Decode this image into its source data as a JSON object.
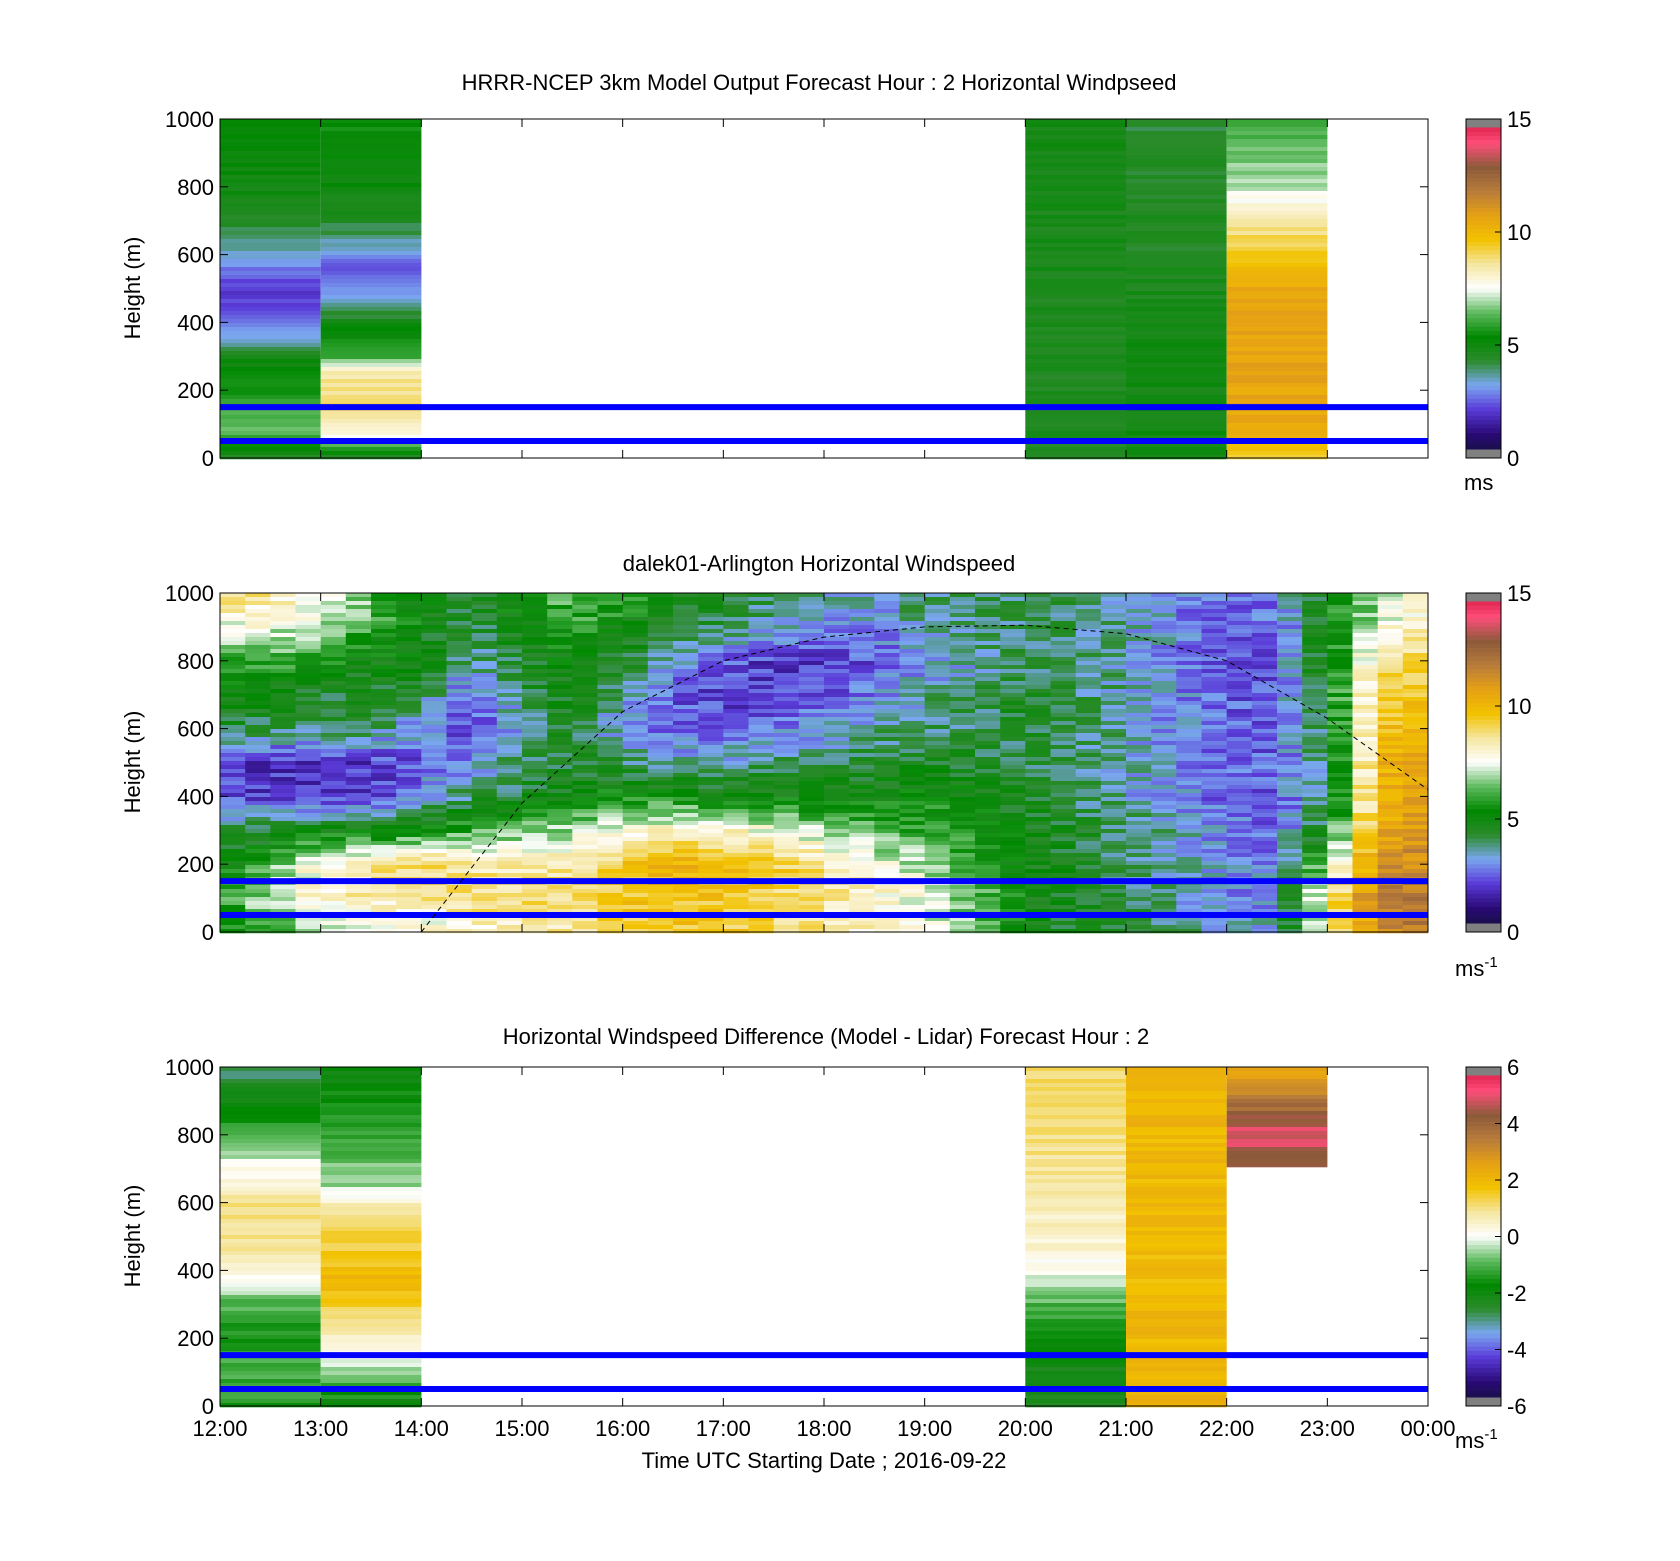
{
  "figure": {
    "x_tick_labels": [
      "12:00",
      "13:00",
      "14:00",
      "15:00",
      "16:00",
      "17:00",
      "18:00",
      "19:00",
      "20:00",
      "21:00",
      "22:00",
      "23:00",
      "00:00"
    ],
    "x_label": "Time UTC  Starting Date ; 2016-09-22",
    "marker_lines_height_m": [
      150,
      50
    ],
    "marker_line_color": "#0000ff"
  },
  "colormap_stops": [
    "#111133",
    "#2a0a78",
    "#5a3bd8",
    "#7aa7f0",
    "#2b8b2b",
    "#008800",
    "#5fba5f",
    "#ffffff",
    "#f5e6a0",
    "#f2c200",
    "#e6a114",
    "#b87c3a",
    "#8c5a3a",
    "#ff4d7a",
    "#d0103a"
  ],
  "chart_data": [
    {
      "type": "heatmap",
      "title": "HRRR-NCEP 3km Model Output   Forecast Hour : 2 Horizontal Windpseed",
      "ylabel": "Height (m)",
      "xlim": [
        "12:00",
        "00:00"
      ],
      "ylim": [
        0,
        1000
      ],
      "y_ticks": [
        0,
        200,
        400,
        600,
        800,
        1000
      ],
      "colorbar": {
        "ticks": [
          0,
          5,
          10,
          15
        ],
        "range": [
          0,
          15
        ],
        "unit": "ms",
        "unit_sup": ""
      },
      "columns": [
        {
          "start": "12:00",
          "end": "13:00",
          "profile": [
            [
              0,
              4.5
            ],
            [
              50,
              6
            ],
            [
              100,
              6.5
            ],
            [
              200,
              5.5
            ],
            [
              300,
              4.8
            ],
            [
              350,
              3.5
            ],
            [
              400,
              2.5
            ],
            [
              500,
              2
            ],
            [
              600,
              3.5
            ],
            [
              700,
              4.5
            ],
            [
              800,
              5
            ],
            [
              1000,
              5.5
            ]
          ]
        },
        {
          "start": "13:00",
          "end": "14:00",
          "profile": [
            [
              0,
              4.5
            ],
            [
              80,
              8
            ],
            [
              150,
              9
            ],
            [
              250,
              8.5
            ],
            [
              300,
              6
            ],
            [
              400,
              4.8
            ],
            [
              450,
              3.5
            ],
            [
              550,
              2.5
            ],
            [
              600,
              3
            ],
            [
              700,
              4.5
            ],
            [
              800,
              5
            ],
            [
              1000,
              5.5
            ]
          ]
        },
        {
          "start": "20:00",
          "end": "21:00",
          "profile": [
            [
              0,
              4.5
            ],
            [
              1000,
              4.8
            ]
          ]
        },
        {
          "start": "21:00",
          "end": "22:00",
          "profile": [
            [
              0,
              5
            ],
            [
              400,
              4.8
            ],
            [
              600,
              4.5
            ],
            [
              900,
              4.4
            ],
            [
              1000,
              4.3
            ]
          ]
        },
        {
          "start": "22:00",
          "end": "23:00",
          "profile": [
            [
              0,
              9.5
            ],
            [
              100,
              10.5
            ],
            [
              300,
              10.6
            ],
            [
              500,
              10.5
            ],
            [
              600,
              9.5
            ],
            [
              700,
              8.5
            ],
            [
              800,
              7
            ],
            [
              1000,
              6
            ]
          ]
        }
      ]
    },
    {
      "type": "heatmap",
      "title": "dalek01-Arlington  Horizontal Windspeed",
      "ylabel": "Height (m)",
      "xlim": [
        "12:00",
        "00:00"
      ],
      "ylim": [
        0,
        1000
      ],
      "y_ticks": [
        0,
        200,
        400,
        600,
        800,
        1000
      ],
      "colorbar": {
        "ticks": [
          0,
          5,
          10,
          15
        ],
        "range": [
          0,
          15
        ],
        "unit": "ms",
        "unit_sup": "-1"
      },
      "time_hours": [
        12,
        12.5,
        13,
        13.5,
        14,
        14.5,
        15,
        15.5,
        16,
        16.5,
        17,
        17.5,
        18,
        18.5,
        19,
        19.5,
        20,
        20.5,
        21,
        21.5,
        22,
        22.5,
        23,
        23.5,
        24
      ],
      "height_m": [
        0,
        100,
        200,
        300,
        400,
        500,
        600,
        700,
        800,
        900,
        1000
      ],
      "windspeed_ms": [
        [
          5,
          6,
          7,
          7,
          7.5,
          8,
          8,
          8.5,
          9,
          9.5,
          9.5,
          9,
          8.5,
          8,
          7.5,
          6.5,
          5,
          4.5,
          4,
          4,
          3.5,
          3.5,
          8,
          11,
          12
        ],
        [
          6,
          7,
          8,
          8.5,
          8.5,
          9,
          9,
          9,
          9.5,
          9.5,
          9.5,
          9,
          8.5,
          8,
          7.5,
          6.5,
          5,
          4.5,
          4,
          3.5,
          3,
          3,
          8.5,
          11.5,
          12
        ],
        [
          5,
          6,
          8,
          8.5,
          9,
          8.5,
          8,
          8.5,
          9.5,
          10,
          10,
          9.5,
          8.5,
          7.5,
          7,
          6,
          5,
          4.5,
          4,
          3.5,
          3,
          3,
          7,
          11,
          11.5
        ],
        [
          4,
          4.5,
          5,
          5,
          5.5,
          6,
          6.5,
          7,
          7.5,
          8,
          8,
          7.5,
          7,
          6.5,
          6,
          5.5,
          5,
          4.5,
          4,
          3.5,
          3,
          2.5,
          5,
          10.5,
          11
        ],
        [
          2.5,
          2,
          2,
          2,
          3,
          4,
          4.5,
          5,
          5.5,
          5.5,
          5,
          5,
          5,
          5,
          5.5,
          5,
          4.5,
          4,
          3.5,
          3,
          2.5,
          2.5,
          4,
          10,
          11
        ],
        [
          2,
          2,
          2,
          2,
          2.5,
          3,
          4,
          4.5,
          4,
          3.5,
          3.5,
          4,
          4,
          4.5,
          4.5,
          4.5,
          4,
          4,
          3.5,
          3,
          2.5,
          2.5,
          4,
          10,
          10.5
        ],
        [
          4.5,
          4,
          4,
          4,
          3,
          2,
          3.5,
          4.5,
          3,
          2.5,
          2.5,
          3,
          3,
          3.5,
          4,
          4,
          4.5,
          4,
          3.5,
          3,
          2.5,
          2.5,
          4.5,
          9.5,
          10
        ],
        [
          5,
          5,
          4.5,
          4.5,
          4,
          2.5,
          4,
          5,
          3.5,
          2.5,
          2,
          2,
          2.5,
          3,
          3.5,
          4,
          4.5,
          4,
          3.5,
          3,
          2.5,
          2.5,
          5,
          9,
          9.5
        ],
        [
          6,
          6,
          5.5,
          5,
          5,
          3.5,
          4.5,
          5,
          4.5,
          3.5,
          2.5,
          2,
          2,
          2.5,
          3,
          3.5,
          4,
          4,
          3.5,
          3,
          2.5,
          2.5,
          5,
          8.5,
          9
        ],
        [
          7.5,
          7.5,
          7,
          6,
          5,
          4,
          5,
          6,
          5,
          4.5,
          4,
          3.5,
          3,
          3,
          3.5,
          4,
          4,
          4,
          3.5,
          3,
          2.5,
          2.5,
          5,
          7.5,
          8.5
        ],
        [
          9,
          8.5,
          7.5,
          6.5,
          5,
          4.5,
          5.5,
          6.5,
          6,
          5,
          4.5,
          4,
          3.5,
          3.5,
          4,
          4,
          4,
          4,
          3.5,
          3,
          2.5,
          3,
          5,
          7,
          8
        ]
      ],
      "solar_curve_m": [
        [
          14,
          0
        ],
        [
          15,
          380
        ],
        [
          16,
          650
        ],
        [
          17,
          800
        ],
        [
          18,
          870
        ],
        [
          19,
          900
        ],
        [
          20,
          905
        ],
        [
          21,
          880
        ],
        [
          22,
          800
        ],
        [
          23,
          630
        ],
        [
          24,
          420
        ]
      ]
    },
    {
      "type": "heatmap",
      "title": "Horizontal Windspeed Difference (Model - Lidar) Forecast Hour : 2",
      "ylabel": "Height (m)",
      "xlim": [
        "12:00",
        "00:00"
      ],
      "ylim": [
        0,
        1000
      ],
      "y_ticks": [
        0,
        200,
        400,
        600,
        800,
        1000
      ],
      "colorbar": {
        "ticks": [
          -6,
          -4,
          -2,
          0,
          2,
          4,
          6
        ],
        "range": [
          -6,
          6
        ],
        "unit": "ms",
        "unit_sup": "-1"
      },
      "columns": [
        {
          "start": "12:00",
          "end": "13:00",
          "profile": [
            [
              0,
              -1.5
            ],
            [
              100,
              -1
            ],
            [
              200,
              -1.5
            ],
            [
              300,
              -1
            ],
            [
              400,
              0.5
            ],
            [
              500,
              1
            ],
            [
              600,
              1
            ],
            [
              700,
              0
            ],
            [
              800,
              -1
            ],
            [
              900,
              -2
            ],
            [
              1000,
              -3
            ]
          ]
        },
        {
          "start": "13:00",
          "end": "14:00",
          "profile": [
            [
              0,
              -2
            ],
            [
              100,
              -0.5
            ],
            [
              200,
              0.5
            ],
            [
              250,
              1
            ],
            [
              350,
              2
            ],
            [
              450,
              1.5
            ],
            [
              550,
              1.2
            ],
            [
              650,
              -0.5
            ],
            [
              750,
              -1
            ],
            [
              850,
              -1.5
            ],
            [
              1000,
              -2
            ]
          ]
        },
        {
          "start": "20:00",
          "end": "21:00",
          "profile": [
            [
              0,
              -2.5
            ],
            [
              150,
              -2
            ],
            [
              300,
              -1
            ],
            [
              400,
              0
            ],
            [
              500,
              0.5
            ],
            [
              600,
              0.7
            ],
            [
              800,
              1
            ],
            [
              1000,
              1.2
            ]
          ]
        },
        {
          "start": "21:00",
          "end": "22:00",
          "profile": [
            [
              0,
              2
            ],
            [
              500,
              1.9
            ],
            [
              1000,
              2
            ]
          ]
        },
        {
          "start": "22:00",
          "end": "23:00",
          "profile": [
            [
              700,
              4.2
            ],
            [
              800,
              5
            ],
            [
              900,
              3.5
            ],
            [
              1000,
              2.5
            ]
          ]
        }
      ]
    }
  ]
}
